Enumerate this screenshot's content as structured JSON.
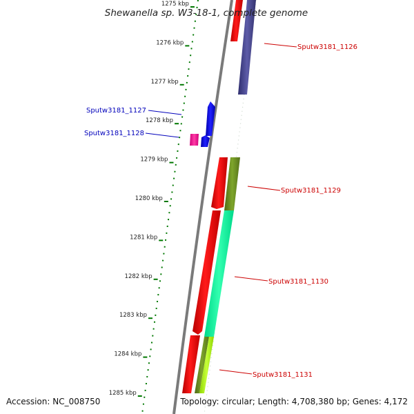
{
  "title": "Shewanella sp. W3-18-1, complete genome",
  "footer": {
    "accession": "Accession: NC_008750",
    "topology": "Topology: circular; Length: 4,708,380 bp; Genes: 4,172"
  },
  "ticks": [
    "1275 kbp",
    "1276 kbp",
    "1277 kbp",
    "1278 kbp",
    "1279 kbp",
    "1280 kbp",
    "1281 kbp",
    "1282 kbp",
    "1283 kbp",
    "1284 kbp",
    "1285 kbp"
  ],
  "genes": [
    {
      "label": "Sputw3181_1126",
      "color": "#cc0000"
    },
    {
      "label": "Sputw3181_1127",
      "color": "#0000bb"
    },
    {
      "label": "Sputw3181_1128",
      "color": "#0000bb"
    },
    {
      "label": "Sputw3181_1129",
      "color": "#cc0000"
    },
    {
      "label": "Sputw3181_1130",
      "color": "#cc0000"
    },
    {
      "label": "Sputw3181_1131",
      "color": "#cc0000"
    }
  ],
  "colors": {
    "backbone": "#808080",
    "tick_marks": "#007700",
    "forward_gene": "#ff0000",
    "reverse_gene": "#0000ff",
    "cog_purple": "#4b4a96",
    "cog_olive": "#6b8e23",
    "cog_cyan": "#00ff99",
    "cog_yellow_green": "#aaff00",
    "rna_magenta": "#ff1493"
  }
}
